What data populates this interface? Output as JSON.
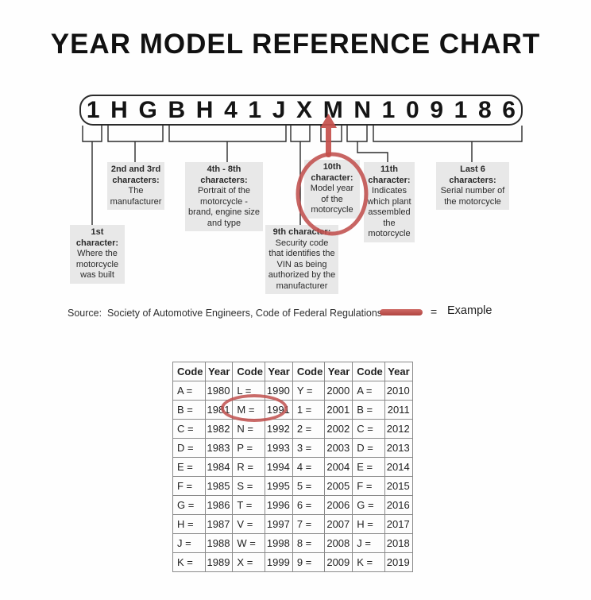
{
  "title": "YEAR MODEL REFERENCE CHART",
  "vin": {
    "characters": [
      "1",
      "H",
      "G",
      "B",
      "H",
      "4",
      "1",
      "J",
      "X",
      "M",
      "N",
      "1",
      "0",
      "9",
      "1",
      "8",
      "6"
    ]
  },
  "callouts": [
    {
      "heading": "1st character:",
      "body": "Where the motorcycle was built"
    },
    {
      "heading": "2nd and 3rd characters:",
      "body": "The manufacturer"
    },
    {
      "heading": "4th - 8th characters:",
      "body": "Portrait of the motorcycle - brand, engine size and type"
    },
    {
      "heading": "9th character:",
      "body": "Security code that identifies the VIN as being authorized by the manufacturer"
    },
    {
      "heading": "10th character:",
      "body": "Model year of the motorcycle"
    },
    {
      "heading": "11th character:",
      "body": "Indicates which plant assembled the motorcycle"
    },
    {
      "heading": "Last 6 characters:",
      "body": "Serial number of the motorcycle"
    }
  ],
  "source": {
    "text": "Source:  Society of Automotive Engineers, Code of Federal Regulations"
  },
  "legend": {
    "equals": "=",
    "label": "Example"
  },
  "colors": {
    "highlight_red": "#c0504d",
    "callout_gray": "#e8e8e8",
    "line_black": "#2b2b2b",
    "table_border": "#8a8a8a"
  },
  "table": {
    "headers": [
      "Code",
      "Year",
      "Code",
      "Year",
      "Code",
      "Year",
      "Code",
      "Year"
    ],
    "rows": [
      [
        "A =",
        "1980",
        "L =",
        "1990",
        "Y =",
        "2000",
        "A =",
        "2010"
      ],
      [
        "B =",
        "1981",
        "M =",
        "1991",
        "1 =",
        "2001",
        "B =",
        "2011"
      ],
      [
        "C =",
        "1982",
        "N =",
        "1992",
        "2 =",
        "2002",
        "C =",
        "2012"
      ],
      [
        "D =",
        "1983",
        "P =",
        "1993",
        "3 =",
        "2003",
        "D =",
        "2013"
      ],
      [
        "E =",
        "1984",
        "R =",
        "1994",
        "4 =",
        "2004",
        "E =",
        "2014"
      ],
      [
        "F =",
        "1985",
        "S =",
        "1995",
        "5 =",
        "2005",
        "F =",
        "2015"
      ],
      [
        "G =",
        "1986",
        "T =",
        "1996",
        "6 =",
        "2006",
        "G =",
        "2016"
      ],
      [
        "H =",
        "1987",
        "V =",
        "1997",
        "7 =",
        "2007",
        "H =",
        "2017"
      ],
      [
        "J =",
        "1988",
        "W =",
        "1998",
        "8 =",
        "2008",
        "J =",
        "2018"
      ],
      [
        "K =",
        "1989",
        "X =",
        "1999",
        "9 =",
        "2009",
        "K =",
        "2019"
      ]
    ],
    "circled_value": "M = 1991"
  }
}
